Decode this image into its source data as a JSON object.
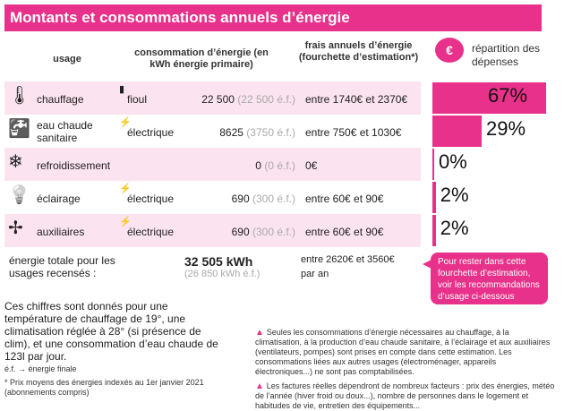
{
  "title": "Montants et consommations annuels d’énergie",
  "headers": {
    "usage": "usage",
    "consumption": "consommation d’énergie (en kWh énergie primaire)",
    "costs": "frais annuels d’énergie (fourchette d’estimation*)",
    "distribution": "répartition des dépenses"
  },
  "rows": [
    {
      "usage": "chauffage",
      "energy": "fioul",
      "consumption": "22 500",
      "final": "(22 500 é.f.)",
      "cost": "entre 1740€ et 2370€",
      "share": "67%",
      "share_value": 67
    },
    {
      "usage": "eau chaude sanitaire",
      "energy": "électrique",
      "consumption": "8625",
      "final": "(3750 é.f.)",
      "cost": "entre 750€ et 1030€",
      "share": "29%",
      "share_value": 29
    },
    {
      "usage": "refroidissement",
      "energy": "",
      "consumption": "0",
      "final": "(0 é.f.)",
      "cost": "0€",
      "share": "0%",
      "share_value": 0
    },
    {
      "usage": "éclairage",
      "energy": "électrique",
      "consumption": "690",
      "final": "(300 é.f.)",
      "cost": "entre 60€ et 90€",
      "share": "2%",
      "share_value": 2
    },
    {
      "usage": "auxiliaires",
      "energy": "électrique",
      "consumption": "690",
      "final": "(300 é.f.)",
      "cost": "entre 60€ et 90€",
      "share": "2%",
      "share_value": 2
    }
  ],
  "total": {
    "label": "énergie totale pour les usages recensés :",
    "consumption": "32 505 kWh",
    "final": "(26 850 kWh é.f.)",
    "cost": "entre 2620€ et 3560€",
    "cost_suffix": "par an"
  },
  "bubble": "Pour rester dans cette fourchette d’estimation, voir les recommandations d’usage ci-dessous",
  "notes": {
    "conditions": "Ces chiffres sont donnés pour une température de chauffage de 19°, une climatisation réglée à 28° (si présence de clim), et une consommation d’eau chaude de 123l par jour.",
    "ef": "é.f. → énergie finale",
    "prices": "* Prix moyens des énergies indexés au 1er janvier 2021 (abonnements compris)",
    "warning1": "Seules les consommations d’énergie nécessaires au chauffage, à la climatisation, à la production d’eau chaude sanitaire, à l’éclairage et aux auxiliaires (ventilateurs, pompes) sont prises en compte dans cette estimation. Les consommations liées aux autres usages (électroménager, appareils électroniques...) ne sont pas comptabilisées.",
    "warning2": "Les factures réelles dépendront de nombreux facteurs : prix des énergies, météo de l’année (hiver froid ou doux...), nombre de personnes dans le logement et habitudes de vie, entretien des équipements..."
  },
  "colors": {
    "accent": "#e8318a",
    "row": "#fbe3ef"
  }
}
